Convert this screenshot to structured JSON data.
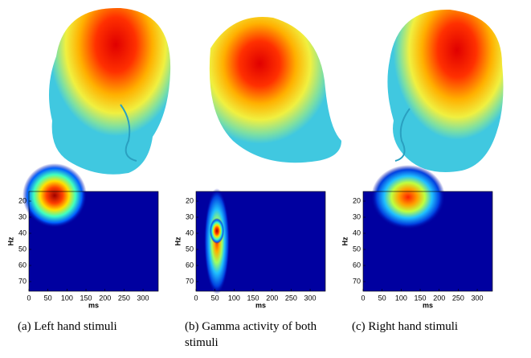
{
  "figure": {
    "xlabel": "ms",
    "ylabel": "Hz",
    "xticks": [
      0,
      50,
      100,
      150,
      200,
      250,
      300
    ],
    "yticks": [
      20,
      30,
      40,
      50,
      60,
      70
    ],
    "xlim": [
      0,
      340
    ],
    "ylim": [
      14,
      76
    ],
    "panels": [
      {
        "caption": "(a) Left hand stimuli"
      },
      {
        "caption": "(b) Gamma activity of both stimuli"
      },
      {
        "caption": "(c) Right hand stimuli"
      }
    ]
  }
}
